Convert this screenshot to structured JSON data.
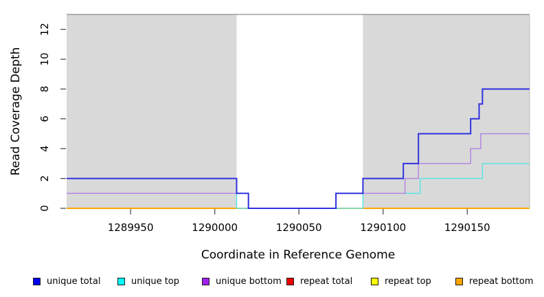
{
  "chart_data": {
    "type": "line",
    "subtype": "step-after-coverage",
    "title": "",
    "xlabel": "Coordinate in Reference Genome",
    "ylabel": "Read Coverage Depth",
    "xlim": [
      1289912,
      1290187
    ],
    "ylim": [
      0,
      13
    ],
    "x_ticks": [
      1289950,
      1290000,
      1290050,
      1290100,
      1290150
    ],
    "y_ticks": [
      0,
      2,
      4,
      6,
      8,
      10,
      12
    ],
    "grid": false,
    "legend_position": "bottom",
    "shaded_regions": [
      {
        "x_start": 1289912,
        "x_end": 1290013
      },
      {
        "x_start": 1290088,
        "x_end": 1290187
      }
    ],
    "shaded_region_fill": "#d9d9d9",
    "plot_box_line_color": "#8c8c8c",
    "series": [
      {
        "name": "unique total",
        "line_color": "#3030df",
        "swatch_color": "#0000ee",
        "line_width": 2,
        "points": [
          [
            1289912,
            2
          ],
          [
            1290013,
            1
          ],
          [
            1290020,
            0
          ],
          [
            1290072,
            1
          ],
          [
            1290088,
            2
          ],
          [
            1290112,
            3
          ],
          [
            1290121,
            5
          ],
          [
            1290152,
            6
          ],
          [
            1290157,
            7
          ],
          [
            1290159,
            8
          ],
          [
            1290187,
            8
          ]
        ]
      },
      {
        "name": "unique top",
        "line_color": "#5fe3e3",
        "swatch_color": "#00ffff",
        "line_width": 1.5,
        "points": [
          [
            1289912,
            1
          ],
          [
            1290013,
            0
          ],
          [
            1290088,
            1
          ],
          [
            1290122,
            2
          ],
          [
            1290159,
            3
          ],
          [
            1290187,
            3
          ]
        ]
      },
      {
        "name": "unique bottom",
        "line_color": "#b287e2",
        "swatch_color": "#a020f0",
        "line_width": 1.5,
        "points": [
          [
            1289912,
            1
          ],
          [
            1290020,
            0
          ],
          [
            1290072,
            1
          ],
          [
            1290113,
            2
          ],
          [
            1290121,
            3
          ],
          [
            1290152,
            4
          ],
          [
            1290158,
            5
          ],
          [
            1290187,
            5
          ]
        ]
      },
      {
        "name": "repeat total",
        "line_color": "#dd2222",
        "swatch_color": "#ee0000",
        "line_width": 1.5,
        "points": [
          [
            1289912,
            0
          ],
          [
            1290187,
            0
          ]
        ]
      },
      {
        "name": "repeat top",
        "line_color": "#f0f000",
        "swatch_color": "#ffff00",
        "line_width": 1.5,
        "points": [
          [
            1289912,
            0
          ],
          [
            1290187,
            0
          ]
        ]
      },
      {
        "name": "repeat bottom",
        "line_color": "#ffa500",
        "swatch_color": "#ffa500",
        "line_width": 2,
        "points": [
          [
            1289912,
            0
          ],
          [
            1290187,
            0
          ]
        ]
      }
    ],
    "draw_order": [
      "repeat total",
      "repeat top",
      "repeat bottom",
      "unique top",
      "unique bottom",
      "unique total"
    ]
  },
  "legend": {
    "items": [
      {
        "label": "unique total",
        "color": "#0000ee"
      },
      {
        "label": "unique top",
        "color": "#00ffff"
      },
      {
        "label": "unique bottom",
        "color": "#a020f0"
      },
      {
        "label": "repeat total",
        "color": "#ee0000"
      },
      {
        "label": "repeat top",
        "color": "#ffff00"
      },
      {
        "label": "repeat bottom",
        "color": "#ffa500"
      }
    ]
  }
}
